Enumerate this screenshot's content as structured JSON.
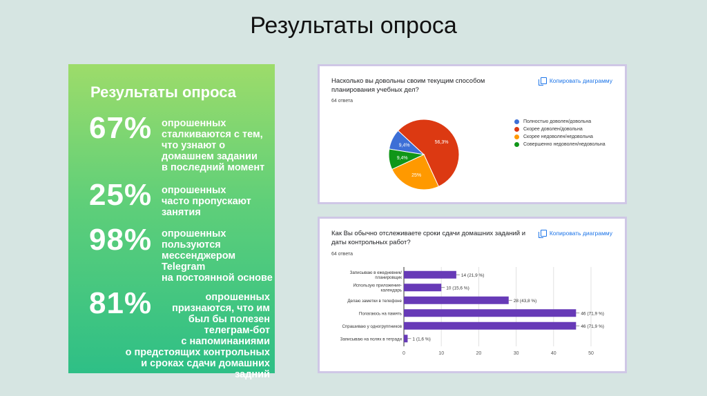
{
  "slide": {
    "title": "Результаты опроса"
  },
  "left_panel": {
    "title": "Результаты опроса",
    "stats": [
      {
        "value": "67%",
        "text": "опрошенных\nсталкиваются с тем,\nчто узнают о\nдомашнем задании\nв последний момент"
      },
      {
        "value": "25%",
        "text": "опрошенных\nчасто пропускают\nзанятия"
      },
      {
        "value": "98%",
        "text": "опрошенных\nпользуются\nмессенджером\nTelegram\nна постоянной основе"
      },
      {
        "value": "81%",
        "text": "опрошенных\nпризнаются, что им\nбыл бы полезен\nтелеграм-бот\nс напоминаниями\nо предстоящих контрольных\nи сроках сдачи домашних задний"
      }
    ]
  },
  "copy_label": "Копировать диаграмму",
  "chart_data": [
    {
      "type": "pie",
      "title": "Насколько вы довольны своим текущим способом\nпланирования учебных дел?",
      "responses": "64 ответа",
      "slices": [
        {
          "label": "Полностью доволен/довольна",
          "value": 9.4,
          "display": "9,4%",
          "color": "#3d6fd6"
        },
        {
          "label": "Скорее доволен/довольна",
          "value": 56.3,
          "display": "56,3%",
          "color": "#dc3912"
        },
        {
          "label": "Скорее недоволен/недовольна",
          "value": 25,
          "display": "25%",
          "color": "#ff9900"
        },
        {
          "label": "Совершенно недоволен/недовольна",
          "value": 9.4,
          "display": "9,4%",
          "color": "#109618"
        }
      ]
    },
    {
      "type": "bar",
      "orientation": "horizontal",
      "title": "Как Вы обычно отслеживаете сроки сдачи домашних заданий и\nдаты контрольных работ?",
      "responses": "64 ответа",
      "color": "#673ab7",
      "categories": [
        "Записываю в ежедневник/\nпланировщик",
        "Использую приложение-\nкалендарь",
        "Делаю заметки в телефоне",
        "Полагаюсь на память",
        "Спрашиваю у одногруппников",
        "Записываю на полях в тетради"
      ],
      "values": [
        14,
        10,
        28,
        46,
        46,
        1
      ],
      "value_labels": [
        "14 (21,9 %)",
        "10 (15,6 %)",
        "28 (43,8 %)",
        "46 (71,9 %)",
        "46 (71,9 %)",
        "1 (1,6 %)"
      ],
      "xticks": [
        0,
        10,
        20,
        30,
        40,
        50
      ],
      "xlim": [
        0,
        50
      ]
    }
  ]
}
